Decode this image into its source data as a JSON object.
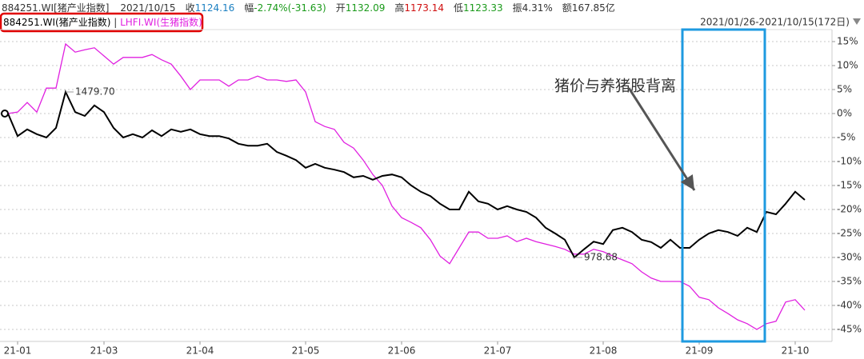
{
  "chart_data": {
    "type": "line",
    "header": {
      "code": "884251.WI[猪产业指数]",
      "date": "2021/10/15",
      "items": [
        {
          "label": "收",
          "value": 1124.16,
          "color": "#1a7fc1"
        },
        {
          "label": "幅",
          "value": "-2.74%(-31.63)",
          "color": "#1a9a1a"
        },
        {
          "label": "开",
          "value": 1132.09,
          "color": "#1a9a1a"
        },
        {
          "label": "高",
          "value": 1173.14,
          "color": "#d01010"
        },
        {
          "label": "低",
          "value": 1123.33,
          "color": "#1a9a1a"
        },
        {
          "label": "振",
          "value": "4.31%",
          "color": "#333333"
        },
        {
          "label": "额",
          "value": "167.85亿",
          "color": "#333333"
        }
      ]
    },
    "range_label": "2021/01/26-2021/10/15(172日)",
    "callout": "猪价与养猪股背离",
    "annotations": [
      {
        "text": "1479.70",
        "at": "max",
        "color": "#c00000"
      },
      {
        "text": "978.68",
        "at": "min",
        "color": "#1a9a1a"
      }
    ],
    "categories": [
      null,
      "21-01",
      null,
      null,
      null,
      null,
      null,
      null,
      null,
      null,
      "21-03",
      null,
      null,
      null,
      null,
      null,
      null,
      null,
      null,
      null,
      "21-04",
      null,
      null,
      null,
      null,
      null,
      null,
      null,
      null,
      null,
      null,
      "21-05",
      null,
      null,
      null,
      null,
      null,
      null,
      null,
      null,
      null,
      "21-06",
      null,
      null,
      null,
      null,
      null,
      null,
      null,
      null,
      null,
      "21-07",
      null,
      null,
      null,
      null,
      null,
      null,
      null,
      null,
      null,
      null,
      "21-08",
      null,
      null,
      null,
      null,
      null,
      null,
      null,
      null,
      null,
      "21-09",
      null,
      null,
      null,
      null,
      null,
      null,
      null,
      null,
      null,
      "21-10",
      null
    ],
    "series": [
      {
        "name": "884251.WI(猪产业指数)",
        "color": "#000000",
        "values": [
          0,
          -4.7,
          -3.3,
          -4.3,
          -5,
          -3,
          4.5,
          0.3,
          -0.5,
          1.7,
          0.3,
          -3,
          -5,
          -4.3,
          -5,
          -3.5,
          -4.7,
          -3.3,
          -3.8,
          -3.3,
          -4.3,
          -4.7,
          -4.7,
          -5.2,
          -6.3,
          -6.7,
          -6.7,
          -6.3,
          -8,
          -8.8,
          -9.7,
          -11.3,
          -10.5,
          -11.3,
          -11.7,
          -12.2,
          -13.3,
          -13,
          -13.8,
          -13,
          -12.7,
          -13.3,
          -15,
          -16.3,
          -17.2,
          -18.8,
          -20,
          -20,
          -16.3,
          -18.3,
          -18.8,
          -20,
          -19.3,
          -20,
          -20.5,
          -21.7,
          -23.8,
          -25,
          -26.3,
          -30,
          -28.3,
          -26.7,
          -27.2,
          -24.3,
          -23.8,
          -24.7,
          -26.3,
          -26.8,
          -28,
          -26.3,
          -28,
          -28,
          -26.3,
          -25,
          -24.3,
          -24.7,
          -25.5,
          -23.8,
          -24.7,
          -20.5,
          -21,
          -18.8,
          -16.3,
          -18
        ]
      },
      {
        "name": "LHFI.WI(生猪指数)",
        "color": "#e020e0",
        "values": [
          0,
          0.3,
          2.3,
          0.3,
          5.3,
          5.3,
          14.5,
          12.8,
          13.3,
          13.7,
          12,
          10.3,
          11.7,
          11.7,
          11.7,
          12.3,
          11.2,
          10.3,
          7.8,
          5,
          7,
          7,
          7,
          5.7,
          7,
          7,
          7.8,
          7,
          7,
          6.7,
          7,
          4.5,
          -1.7,
          -2.7,
          -3.3,
          -6,
          -7.2,
          -9.7,
          -12.7,
          -15,
          -19.3,
          -21.7,
          -22.7,
          -23.8,
          -26.3,
          -29.7,
          -31.3,
          -28,
          -24.7,
          -24.7,
          -26,
          -26,
          -25.5,
          -26.7,
          -26,
          -26.7,
          -27.2,
          -27.7,
          -28.3,
          -29.3,
          -29.3,
          -28.3,
          -28.8,
          -29.7,
          -30.5,
          -31.3,
          -33,
          -34.3,
          -35,
          -35,
          -35,
          -36,
          -38.3,
          -38.8,
          -40.5,
          -41.7,
          -43,
          -43.8,
          -45,
          -43.8,
          -43.3,
          -39.3,
          -38.8,
          -41
        ]
      }
    ],
    "ylim": [
      -47.5,
      17.5
    ],
    "yticks": [
      {
        "value": 15,
        "label": "15%"
      },
      {
        "value": 10,
        "label": "10%"
      },
      {
        "value": 5,
        "label": "5%"
      },
      {
        "value": 0,
        "label": "0%"
      },
      {
        "value": -5,
        "label": "-5%"
      },
      {
        "value": -10,
        "label": "-10%"
      },
      {
        "value": -15,
        "label": "-15%"
      },
      {
        "value": -20,
        "label": "-20%"
      },
      {
        "value": -25,
        "label": "-25%"
      },
      {
        "value": -30,
        "label": "-30%"
      },
      {
        "value": -35,
        "label": "-35%"
      },
      {
        "value": -40,
        "label": "-40%"
      },
      {
        "value": -45,
        "label": "-45%"
      }
    ],
    "grid": true
  }
}
